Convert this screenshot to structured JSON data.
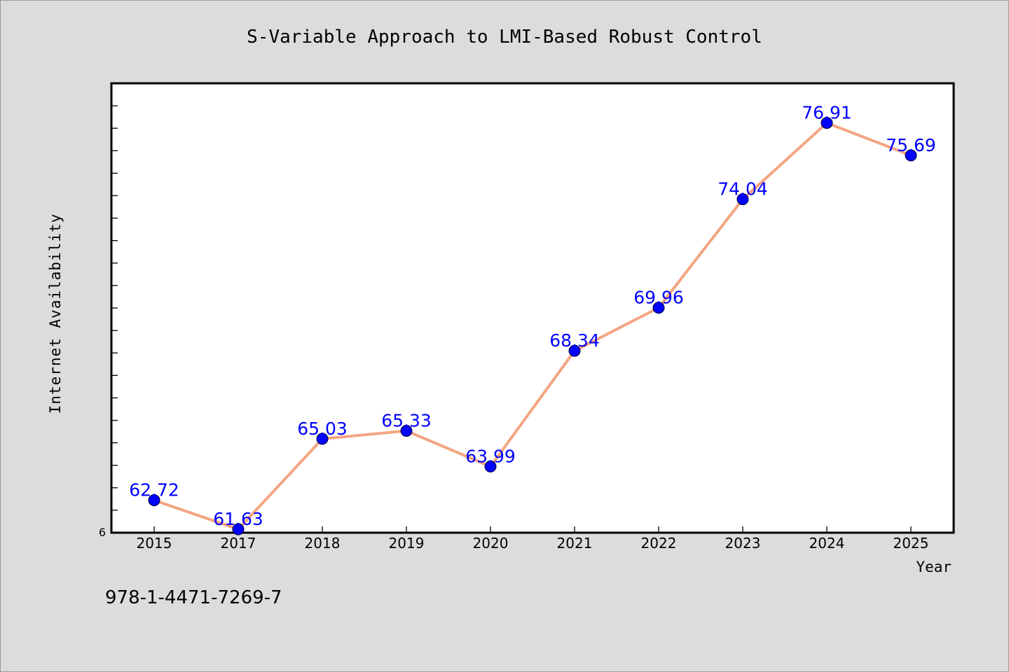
{
  "chart_data": {
    "type": "line",
    "title": "S-Variable Approach to LMI-Based Robust Control",
    "xlabel": "Year",
    "ylabel": "Internet Availability",
    "categories": [
      "2015",
      "2017",
      "2018",
      "2019",
      "2020",
      "2021",
      "2022",
      "2023",
      "2024",
      "2025"
    ],
    "values": [
      62.72,
      61.63,
      65.03,
      65.33,
      63.99,
      68.34,
      69.96,
      74.04,
      76.91,
      75.69
    ],
    "data_labels": [
      "62.72",
      "61.63",
      "65.03",
      "65.33",
      "63.99",
      "68.34",
      "69.96",
      "74.04",
      "76.91",
      "75.69"
    ],
    "ylim": [
      61.5,
      78.4
    ],
    "y_tick_label": "6",
    "grid": false,
    "line_color": "#f4a582",
    "marker_color": "#0000ff",
    "label_color": "#0000ff"
  },
  "footer": {
    "isbn": "978-1-4471-7269-7"
  }
}
